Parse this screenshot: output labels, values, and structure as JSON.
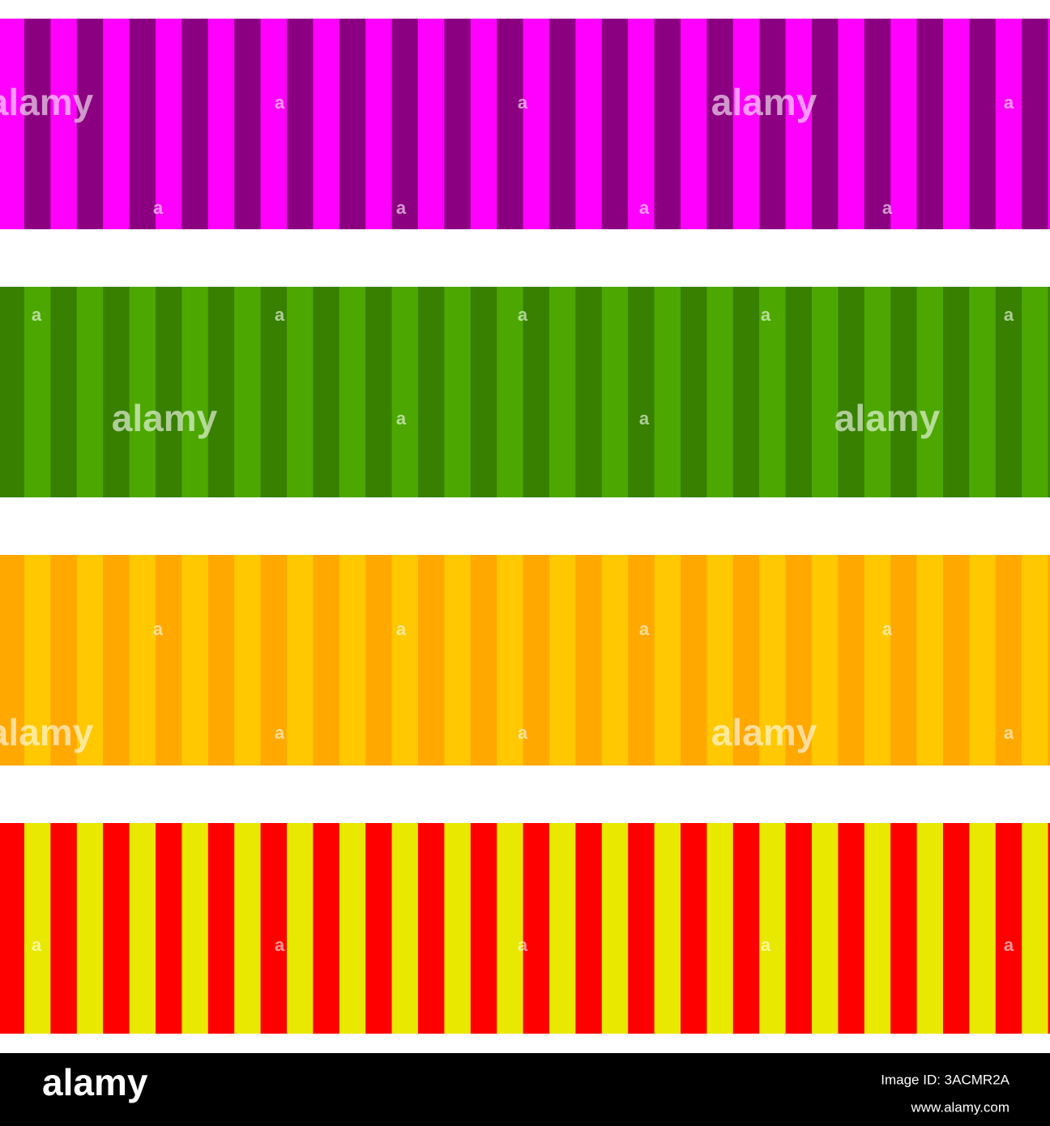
{
  "bands": [
    {
      "colors": [
        "#ff00ff",
        "#8b0080"
      ]
    },
    {
      "colors": [
        "#378000",
        "#4ca800"
      ]
    },
    {
      "colors": [
        "#ffa800",
        "#ffc800"
      ]
    },
    {
      "colors": [
        "#ff0000",
        "#e8e800"
      ]
    }
  ],
  "watermark": {
    "logo": "alamy",
    "mark": "a"
  },
  "footer": {
    "logo": "alamy",
    "image_id": "Image ID: 3ACMR2A",
    "url": "www.alamy.com"
  }
}
